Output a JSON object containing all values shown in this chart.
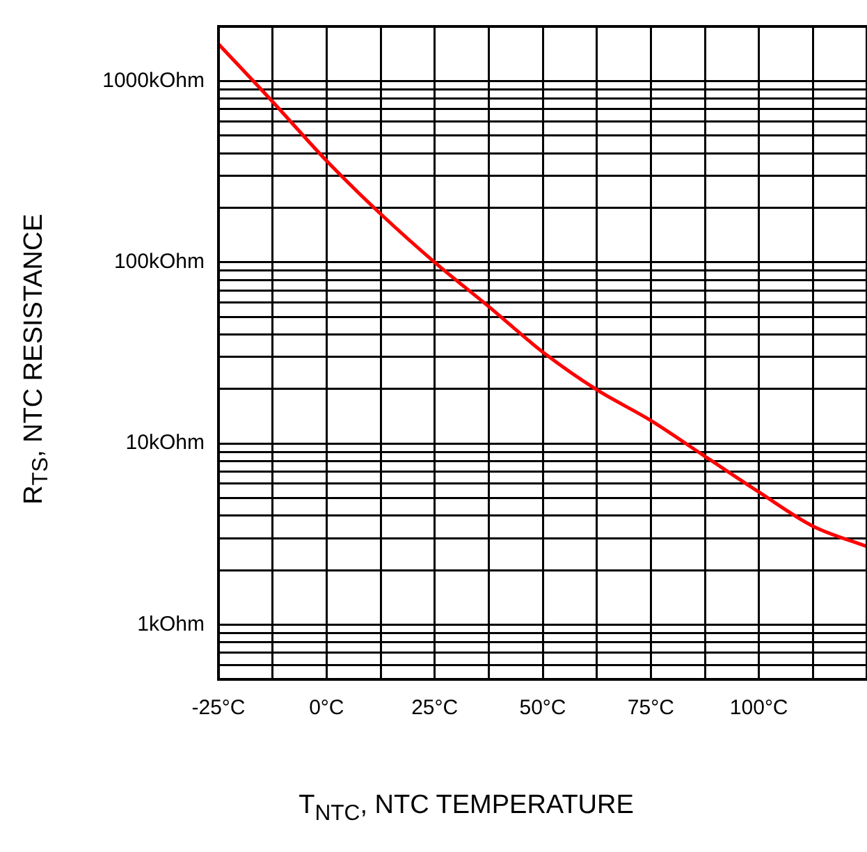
{
  "chart_data": {
    "type": "line",
    "xlabel": "T$_{NTC}$, NTC TEMPERATURE",
    "ylabel": "R$_{TS}$, NTC RESISTANCE",
    "x": [
      -25,
      -12.5,
      0,
      12.5,
      25,
      37.5,
      50,
      62.5,
      75,
      87.5,
      100,
      112.5,
      125
    ],
    "series": [
      {
        "color": "#ff0000",
        "values": [
          1600,
          770,
          363,
          185,
          100,
          57,
          32,
          19.8,
          13.4,
          8.5,
          5.4,
          3.5,
          2.7
        ]
      }
    ],
    "xlim": [
      -25,
      125
    ],
    "xticks": [
      {
        "value": -25,
        "label": "-25°C"
      },
      {
        "value": -12.5,
        "label": null
      },
      {
        "value": 0,
        "label": "0°C"
      },
      {
        "value": 12.5,
        "label": null
      },
      {
        "value": 25,
        "label": "25°C"
      },
      {
        "value": 37.5,
        "label": null
      },
      {
        "value": 50,
        "label": "50°C"
      },
      {
        "value": 62.5,
        "label": null
      },
      {
        "value": 75,
        "label": "75°C"
      },
      {
        "value": 87.5,
        "label": null
      },
      {
        "value": 100,
        "label": "100°C"
      },
      {
        "value": 112.5,
        "label": null
      }
    ],
    "ylim": [
      0.5,
      2000
    ],
    "yticks": [
      {
        "value": 0.6,
        "label": null
      },
      {
        "value": 0.7,
        "label": null
      },
      {
        "value": 0.8,
        "label": null
      },
      {
        "value": 0.9,
        "label": null
      },
      {
        "value": 1,
        "label": "1kOhm"
      },
      {
        "value": 2,
        "label": null
      },
      {
        "value": 3,
        "label": null
      },
      {
        "value": 4,
        "label": null
      },
      {
        "value": 5,
        "label": null
      },
      {
        "value": 6,
        "label": null
      },
      {
        "value": 7,
        "label": null
      },
      {
        "value": 8,
        "label": null
      },
      {
        "value": 9,
        "label": null
      },
      {
        "value": 10,
        "label": "10kOhm"
      },
      {
        "value": 20,
        "label": null
      },
      {
        "value": 30,
        "label": null
      },
      {
        "value": 40,
        "label": null
      },
      {
        "value": 50,
        "label": null
      },
      {
        "value": 60,
        "label": null
      },
      {
        "value": 70,
        "label": null
      },
      {
        "value": 80,
        "label": null
      },
      {
        "value": 90,
        "label": null
      },
      {
        "value": 100,
        "label": "100kOhm"
      },
      {
        "value": 200,
        "label": null
      },
      {
        "value": 300,
        "label": null
      },
      {
        "value": 400,
        "label": null
      },
      {
        "value": 500,
        "label": null
      },
      {
        "value": 600,
        "label": null
      },
      {
        "value": 700,
        "label": null
      },
      {
        "value": 800,
        "label": null
      },
      {
        "value": 900,
        "label": null
      },
      {
        "value": 1000,
        "label": "1000kOhm"
      }
    ],
    "log": "y",
    "grid": true,
    "legend": false,
    "marker": "none",
    "line_style": "solid"
  }
}
